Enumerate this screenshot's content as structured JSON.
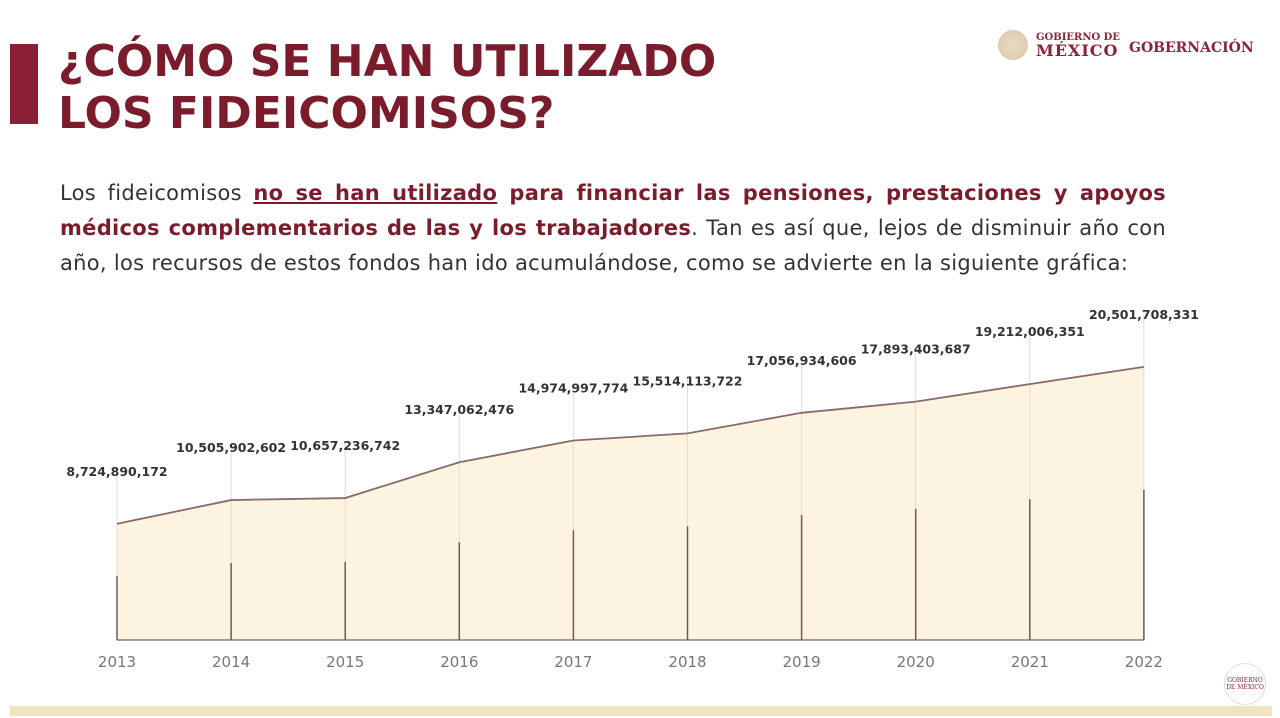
{
  "title_line1": "¿CÓMO SE HAN UTILIZADO",
  "title_line2": "LOS FIDEICOMISOS?",
  "logos": {
    "gob_line1": "GOBIERNO DE",
    "gob_line2": "MÉXICO",
    "dept": "GOBERNACIÓN",
    "corner": "GOBIERNO DE MÉXICO"
  },
  "paragraph": {
    "p1": "Los fideicomisos ",
    "p2": "no se han utilizado",
    "p3": " para financiar las pensiones, prestaciones y apoyos médicos complementarios de las y los trabajadores",
    "p4": ". Tan es así que, lejos de disminuir año con año, los recursos de estos fondos han ido acumulándose, como se advierte en la siguiente gráfica:"
  },
  "colors": {
    "accent": "#7b1c2c",
    "area_fill": "#fdf3e1",
    "line": "#8a6a6a"
  },
  "chart_data": {
    "type": "area",
    "title": "",
    "xlabel": "",
    "ylabel": "",
    "grid": false,
    "categories": [
      "2013",
      "2014",
      "2015",
      "2016",
      "2017",
      "2018",
      "2019",
      "2020",
      "2021",
      "2022"
    ],
    "values": [
      8724890172,
      10505902602,
      10657236742,
      13347062476,
      14974997774,
      15514113722,
      17056934606,
      17893403687,
      19212006351,
      20501708331
    ],
    "labels": [
      "8,724,890,172",
      "10,505,902,602",
      "10,657,236,742",
      "13,347,062,476",
      "14,974,997,774",
      "15,514,113,722",
      "17,056,934,606",
      "17,893,403,687",
      "19,212,006,351",
      "20,501,708,331"
    ],
    "ylim": [
      0,
      21000000000
    ]
  }
}
